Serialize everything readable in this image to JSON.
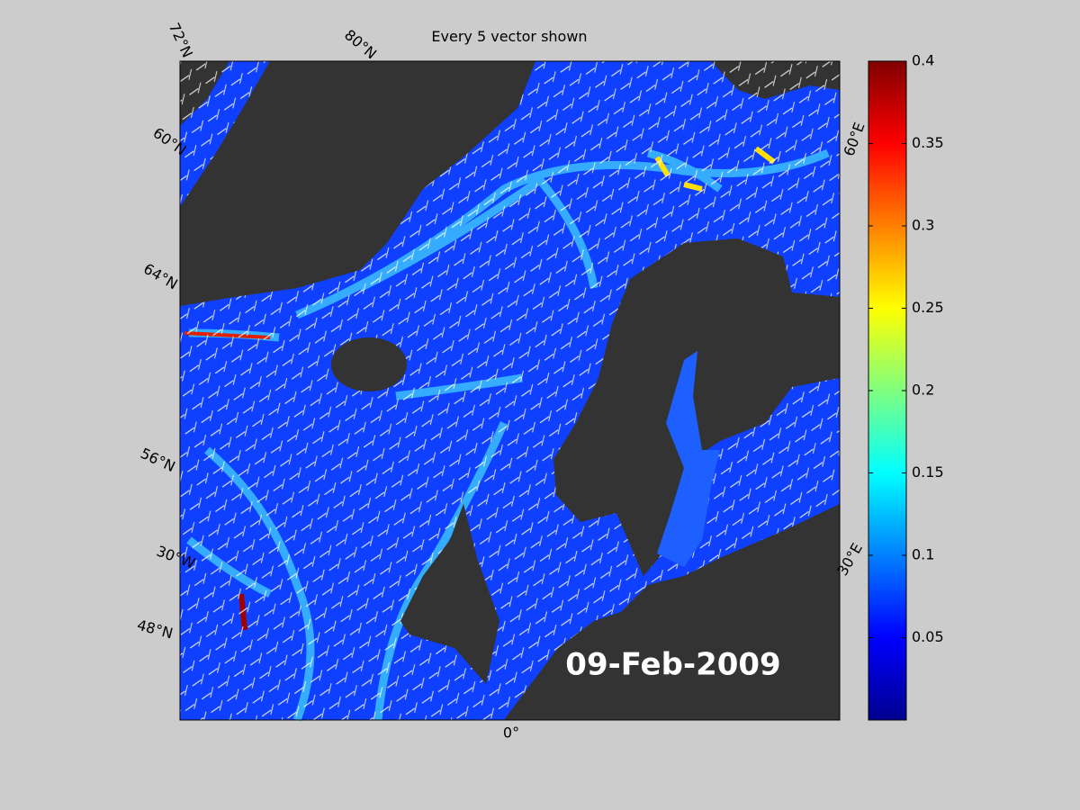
{
  "title": "Every 5 vector shown",
  "date_label": "09-Feb-2009",
  "map_labels": [
    "72°N",
    "80°N",
    "60°N",
    "64°N",
    "56°N",
    "30°W",
    "48°N",
    "60°E",
    "30°E",
    "0°"
  ],
  "colorbar": {
    "lim": [
      0,
      0.4
    ],
    "ticks": [
      0.05,
      0.1,
      0.15,
      0.2,
      0.25,
      0.3,
      0.35,
      0.4
    ]
  }
}
